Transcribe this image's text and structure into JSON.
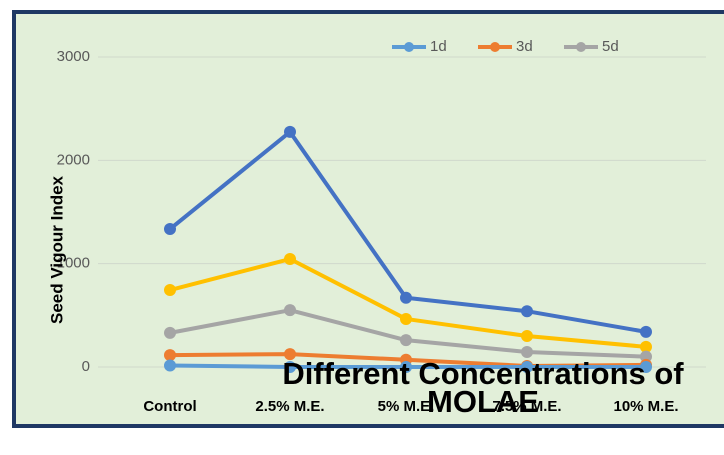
{
  "chart_data": {
    "type": "line",
    "x_label": "Seed Vigour Index",
    "y_label": "Seed Vigour Index",
    "xlabel": "Different Concentrations of MOLAE",
    "categories": [
      "Control",
      "2.5% M.E.",
      "5% M.E.",
      "7.5% M.E.",
      "10% M.E."
    ],
    "series": [
      {
        "color": "#4472c4",
        "values": [
          1335,
          2275,
          670,
          540,
          340
        ]
      },
      {
        "color": "#ffc000",
        "values": [
          745,
          1045,
          465,
          300,
          195
        ]
      },
      {
        "name": "5d",
        "color": "#a5a5a5",
        "values": [
          330,
          550,
          260,
          145,
          100
        ]
      },
      {
        "name": "3d",
        "color": "#ed7d31",
        "values": [
          115,
          125,
          70,
          10,
          20
        ]
      },
      {
        "name": "1d",
        "color": "#5b9bd5",
        "values": [
          15,
          0,
          0,
          0,
          0
        ]
      }
    ],
    "ylim": [
      0,
      3000
    ],
    "yticks": [
      0,
      1000,
      2000,
      3000
    ],
    "grid": true,
    "legend": "top-right"
  }
}
